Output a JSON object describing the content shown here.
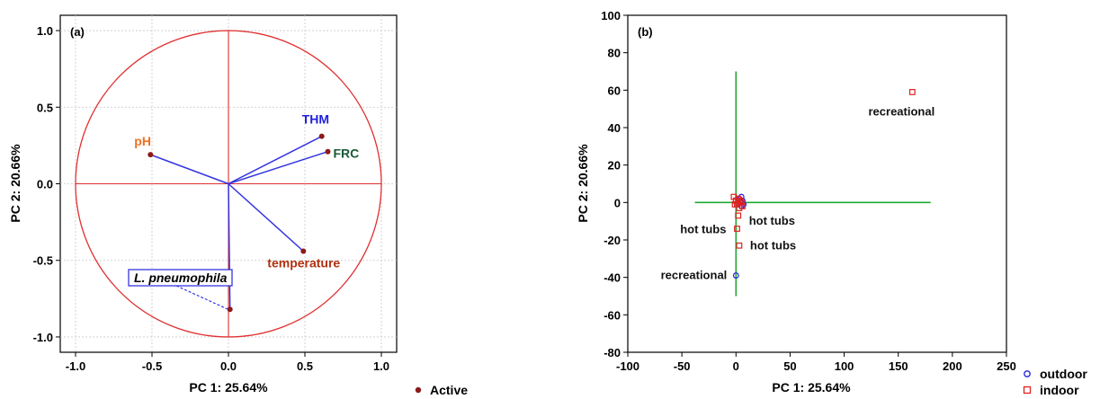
{
  "chart_data": [
    {
      "type": "scatter",
      "panel_label": "(a)",
      "xlabel": "PC 1: 25.64%",
      "ylabel": "PC 2: 20.66%",
      "xlim": [
        -1.1,
        1.1
      ],
      "ylim": [
        -1.1,
        1.1
      ],
      "xticks": [
        -1.0,
        -0.5,
        0.0,
        0.5,
        1.0
      ],
      "yticks": [
        -1.0,
        -0.5,
        0.0,
        0.5,
        1.0
      ],
      "tick_labels_x": [
        "-1.0",
        "-0.5",
        "0.0",
        "0.5",
        "1.0"
      ],
      "tick_labels_y": [
        "-1.0",
        "-0.5",
        "0.0",
        "0.5",
        "1.0"
      ],
      "grid": true,
      "unit_circle": true,
      "legend": {
        "position": "bottom-right",
        "entries": [
          {
            "label": "Active",
            "color": "#8b1a1a"
          }
        ]
      },
      "vectors": [
        {
          "label": "pH",
          "x": -0.51,
          "y": 0.19,
          "color": "#f07020"
        },
        {
          "label": "THM",
          "x": 0.61,
          "y": 0.31,
          "color": "#1f1fe0"
        },
        {
          "label": "FRC",
          "x": 0.65,
          "y": 0.21,
          "color": "#1a5a3a"
        },
        {
          "label": "temperature",
          "x": 0.49,
          "y": -0.44,
          "color": "#b03010"
        },
        {
          "label": "L. pneumophila",
          "x": 0.01,
          "y": -0.82,
          "color": "#000000",
          "boxed": true,
          "italic_part": "L. pneumophila"
        }
      ]
    },
    {
      "type": "scatter",
      "panel_label": "(b)",
      "xlabel": "PC 1: 25.64%",
      "ylabel": "PC 2: 20.66%",
      "xlim": [
        -100,
        250
      ],
      "ylim": [
        -80,
        100
      ],
      "xticks": [
        -100,
        -50,
        0,
        50,
        100,
        150,
        200,
        250
      ],
      "yticks": [
        -80,
        -60,
        -40,
        -20,
        0,
        20,
        40,
        60,
        80,
        100
      ],
      "tick_labels_x": [
        "-100",
        "-50",
        "0",
        "50",
        "100",
        "150",
        "200",
        "250"
      ],
      "tick_labels_y": [
        "-80",
        "-60",
        "-40",
        "-20",
        "0",
        "20",
        "40",
        "60",
        "80",
        "100"
      ],
      "grid": false,
      "legend": {
        "position": "bottom-right",
        "entries": [
          {
            "label": "outdoor",
            "color": "#1f1fe0",
            "marker": "circle"
          },
          {
            "label": "indoor",
            "color": "#e02020",
            "marker": "square"
          }
        ]
      },
      "crosshair": {
        "color": "#22aa33",
        "h_x": [
          -38,
          180
        ],
        "h_y": 0,
        "v_x": 0,
        "v_y": [
          -50,
          70
        ]
      },
      "series": [
        {
          "name": "outdoor",
          "marker": "circle",
          "color": "#1f1fe0",
          "points": [
            [
              0,
              -39
            ],
            [
              5,
              3
            ],
            [
              6,
              1
            ],
            [
              4,
              0
            ],
            [
              7,
              -1
            ],
            [
              3,
              2
            ],
            [
              5,
              -2
            ]
          ]
        },
        {
          "name": "indoor",
          "marker": "square",
          "color": "#e02020",
          "points": [
            [
              163,
              59
            ],
            [
              2,
              -7
            ],
            [
              1,
              -14
            ],
            [
              3,
              -23
            ],
            [
              -2,
              3
            ],
            [
              0,
              1
            ],
            [
              1,
              -1
            ],
            [
              2,
              2
            ],
            [
              3,
              -3
            ],
            [
              4,
              1
            ],
            [
              6,
              -2
            ],
            [
              -1,
              -1
            ],
            [
              2,
              0
            ],
            [
              5,
              0
            ]
          ]
        }
      ],
      "annotations": [
        {
          "text": "recreational",
          "x": 163,
          "y": 59
        },
        {
          "text": "hot tubs",
          "x": 2,
          "y": -7
        },
        {
          "text": "hot tubs",
          "x": 1,
          "y": -14
        },
        {
          "text": "hot tubs",
          "x": 3,
          "y": -23
        },
        {
          "text": "recreational",
          "x": 0,
          "y": -39
        }
      ]
    }
  ]
}
